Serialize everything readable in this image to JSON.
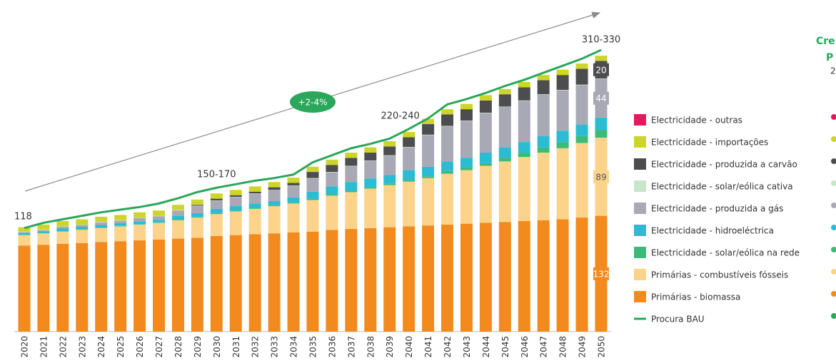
{
  "chart_data": {
    "type": "stacked_bar",
    "categories": [
      "2020",
      "2021",
      "2022",
      "2023",
      "2024",
      "2025",
      "2026",
      "2027",
      "2028",
      "2029",
      "2030",
      "2031",
      "2032",
      "2033",
      "2034",
      "2035",
      "2036",
      "2037",
      "2038",
      "2039",
      "2040",
      "2041",
      "2042",
      "2043",
      "2044",
      "2045",
      "2046",
      "2047",
      "2048",
      "2049",
      "2050"
    ],
    "ylim": [
      0,
      330
    ],
    "series": [
      {
        "name": "Primárias - biomassa",
        "color": "#f28a1e",
        "show_last_label": true,
        "values": [
          98,
          99,
          100,
          101,
          102,
          103,
          104,
          105,
          106,
          107,
          109,
          110,
          111,
          112,
          113,
          114,
          116,
          117,
          118,
          119,
          120,
          121,
          122,
          123,
          124,
          125,
          126,
          127,
          128,
          130,
          132
        ]
      },
      {
        "name": "Primárias - combustíveis fósseis",
        "color": "#fbd38a",
        "show_last_label": true,
        "values": [
          12,
          13,
          14,
          15,
          16,
          17,
          18,
          19,
          21,
          23,
          25,
          27,
          29,
          31,
          33,
          36,
          39,
          42,
          45,
          48,
          51,
          54,
          58,
          61,
          65,
          69,
          73,
          77,
          81,
          85,
          89
        ]
      },
      {
        "name": "Electricidade - solar/eólica na rede",
        "color": "#3dba7a",
        "values": [
          0.5,
          0.5,
          0.5,
          0.5,
          0.5,
          0.5,
          0.5,
          0.5,
          1,
          1,
          1,
          1,
          1,
          1,
          1,
          1.5,
          1.5,
          1.5,
          1.5,
          1.5,
          2,
          2,
          3,
          3,
          3,
          4,
          5,
          6,
          7,
          8,
          9
        ]
      },
      {
        "name": "Electricidade - hidroeléctrica",
        "color": "#2bbcd4",
        "values": [
          2,
          2,
          3,
          3,
          3,
          3,
          3,
          3,
          4,
          4,
          5,
          5,
          5,
          5,
          6,
          8,
          9,
          10,
          10,
          10,
          11,
          11,
          11,
          11,
          12,
          12,
          12,
          13,
          13,
          13,
          14
        ]
      },
      {
        "name": "Electricidade - produzida a gás",
        "color": "#a9a8b5",
        "show_last_label": true,
        "values": [
          1,
          1,
          2,
          2,
          3,
          3,
          4,
          4,
          6,
          8,
          9,
          10,
          11,
          12,
          13,
          15,
          16,
          18,
          20,
          22,
          26,
          36,
          40,
          42,
          45,
          46,
          47,
          47,
          46,
          45,
          44
        ]
      },
      {
        "name": "Electricidade - solar/eólica cativa",
        "color": "#c8e6c9",
        "values": [
          0.5,
          0.5,
          0.5,
          0.5,
          0.5,
          0.5,
          0.5,
          0.5,
          0.5,
          0.5,
          0.5,
          0.5,
          0.5,
          0.5,
          0.5,
          0.5,
          0.5,
          0.5,
          0.5,
          0.5,
          0.5,
          0.5,
          0.5,
          0.5,
          0.5,
          0.5,
          0.5,
          0.5,
          0.5,
          0.5,
          0.5
        ]
      },
      {
        "name": "Electricidade - produzida a carvão",
        "color": "#4d4d4f",
        "show_last_label": true,
        "values": [
          0,
          0,
          0,
          0,
          0,
          0,
          0,
          0,
          0,
          1,
          2,
          2,
          2,
          3,
          3,
          7,
          8,
          9,
          9,
          10,
          11,
          12,
          13,
          13,
          14,
          14,
          15,
          16,
          17,
          18,
          20
        ]
      },
      {
        "name": "Electricidade - importações",
        "color": "#cdd52a",
        "values": [
          5,
          6,
          6,
          6,
          6,
          6,
          6,
          6,
          6,
          6,
          6,
          6,
          6,
          6,
          6,
          6,
          6,
          6,
          6,
          6,
          6,
          6,
          6,
          6,
          6,
          6,
          6,
          6,
          6,
          6,
          6
        ]
      },
      {
        "name": "Electricidade - outras",
        "color": "#e8175d",
        "values": [
          0,
          0,
          0,
          0,
          0,
          0,
          0,
          0,
          0,
          0,
          0,
          0,
          0,
          0,
          0,
          0,
          0,
          0,
          0,
          0,
          0,
          0,
          0,
          0,
          0,
          0,
          0,
          0,
          0,
          0,
          0
        ]
      }
    ],
    "line": {
      "name": "Procura BAU",
      "color": "#2aa75a",
      "values": [
        118,
        124,
        128,
        132,
        136,
        139,
        142,
        146,
        152,
        159,
        164,
        168,
        172,
        175,
        179,
        193,
        201,
        209,
        214,
        220,
        231,
        243,
        259,
        265,
        272,
        280,
        287,
        295,
        303,
        311,
        321
      ]
    },
    "annotations": [
      {
        "text": "118",
        "category": "2020"
      },
      {
        "text": "150-170",
        "category": "2030"
      },
      {
        "text": "220-240",
        "category": "2040"
      },
      {
        "text": "310-330",
        "category": "2050"
      }
    ],
    "growth_label": "+2-4%",
    "side_title": [
      "Cre",
      "P",
      "2"
    ]
  }
}
